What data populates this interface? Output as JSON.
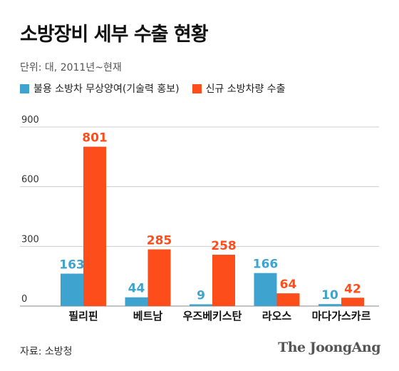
{
  "title": "소방장비 세부 수출 현황",
  "subtitle": "단위: 대, 2011년~현재",
  "source": "자료: 소방청",
  "logo": "The JoongAng",
  "colors": {
    "series1": "#3fa3cf",
    "series2": "#fc4d1a",
    "grid": "#cccccc"
  },
  "chart_data": {
    "type": "bar",
    "title": "소방장비 세부 수출 현황",
    "subtitle": "단위: 대, 2011년~현재",
    "categories": [
      "필리핀",
      "베트남",
      "우즈베키스탄",
      "라오스",
      "마다가스카르"
    ],
    "series": [
      {
        "name": "불용 소방차 무상양여(기술력 홍보)",
        "values": [
          163,
          44,
          9,
          166,
          10
        ]
      },
      {
        "name": "신규 소방차량 수출",
        "values": [
          801,
          285,
          258,
          64,
          42
        ]
      }
    ],
    "yticks": [
      0,
      300,
      600,
      900
    ],
    "ylim": [
      0,
      900
    ],
    "grid": true,
    "legend_position": "top-left"
  }
}
